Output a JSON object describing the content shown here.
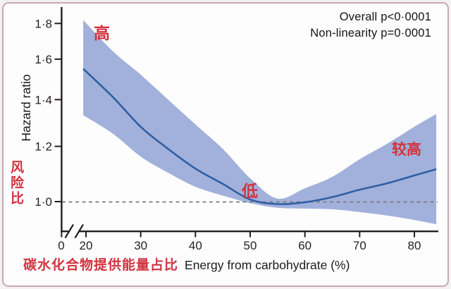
{
  "figure": {
    "stats": {
      "overall": "Overall p<0·0001",
      "nonlinearity": "Non-linearity p=0·0001"
    },
    "y_axis": {
      "label_en": "Hazard ratio",
      "label_zh": "风险比"
    },
    "x_axis": {
      "label_zh": "碳水化合物提供能量占比",
      "label_en": "Energy from carbohydrate (%)",
      "origin_label": "0"
    },
    "annotations": {
      "high": "高",
      "low": "低",
      "moderately_high": "较高"
    }
  },
  "colors": {
    "band": "#a2b1db",
    "line": "#2e5fa5",
    "axis": "#231f20",
    "red_text": "#d2333f",
    "dashed_line": "#7c7c7c",
    "figure_border": "#c8a9b2",
    "background": "#fdfdfe"
  },
  "chart_data": {
    "type": "line",
    "title": "",
    "xlabel": "Energy from carbohydrate (%)",
    "ylabel": "Hazard ratio",
    "y_scale": "log",
    "grid": false,
    "legend": "none",
    "reference_line_y": 1.0,
    "x_axis_break_between": [
      0,
      20
    ],
    "xlim": [
      19.4,
      84
    ],
    "ylim": [
      0.92,
      1.85
    ],
    "x_ticks": [
      {
        "v": 20,
        "label": "20"
      },
      {
        "v": 30,
        "label": "30"
      },
      {
        "v": 40,
        "label": "40"
      },
      {
        "v": 50,
        "label": "50"
      },
      {
        "v": 60,
        "label": "60"
      },
      {
        "v": 70,
        "label": "70"
      },
      {
        "v": 80,
        "label": "80"
      }
    ],
    "y_ticks": [
      {
        "v": 1.0,
        "label": "1·0"
      },
      {
        "v": 1.2,
        "label": "1·2"
      },
      {
        "v": 1.4,
        "label": "1·4"
      },
      {
        "v": 1.6,
        "label": "1·6"
      },
      {
        "v": 1.8,
        "label": "1·8"
      }
    ],
    "x": [
      19.5,
      25,
      30,
      35,
      40,
      45,
      50,
      55,
      60,
      65,
      70,
      75,
      80,
      84
    ],
    "series": [
      {
        "name": "hazard_ratio",
        "values": [
          1.55,
          1.41,
          1.28,
          1.19,
          1.115,
          1.06,
          1.007,
          0.992,
          0.998,
          1.015,
          1.04,
          1.062,
          1.09,
          1.113
        ]
      },
      {
        "name": "ci_upper",
        "values": [
          1.82,
          1.64,
          1.52,
          1.4,
          1.29,
          1.19,
          1.08,
          1.01,
          1.045,
          1.085,
          1.15,
          1.21,
          1.28,
          1.335
        ]
      },
      {
        "name": "ci_lower",
        "values": [
          1.33,
          1.25,
          1.16,
          1.1,
          1.05,
          1.02,
          0.995,
          0.98,
          0.977,
          0.975,
          0.966,
          0.955,
          0.941,
          0.928
        ]
      }
    ],
    "annotations": [
      {
        "text": "高",
        "x": 23,
        "y": 1.76
      },
      {
        "text": "低",
        "x": 50,
        "y": 1.05
      },
      {
        "text": "较高",
        "x": 79,
        "y": 1.19
      }
    ],
    "stats_labels": [
      "Overall p<0·0001",
      "Non-linearity p=0·0001"
    ]
  }
}
